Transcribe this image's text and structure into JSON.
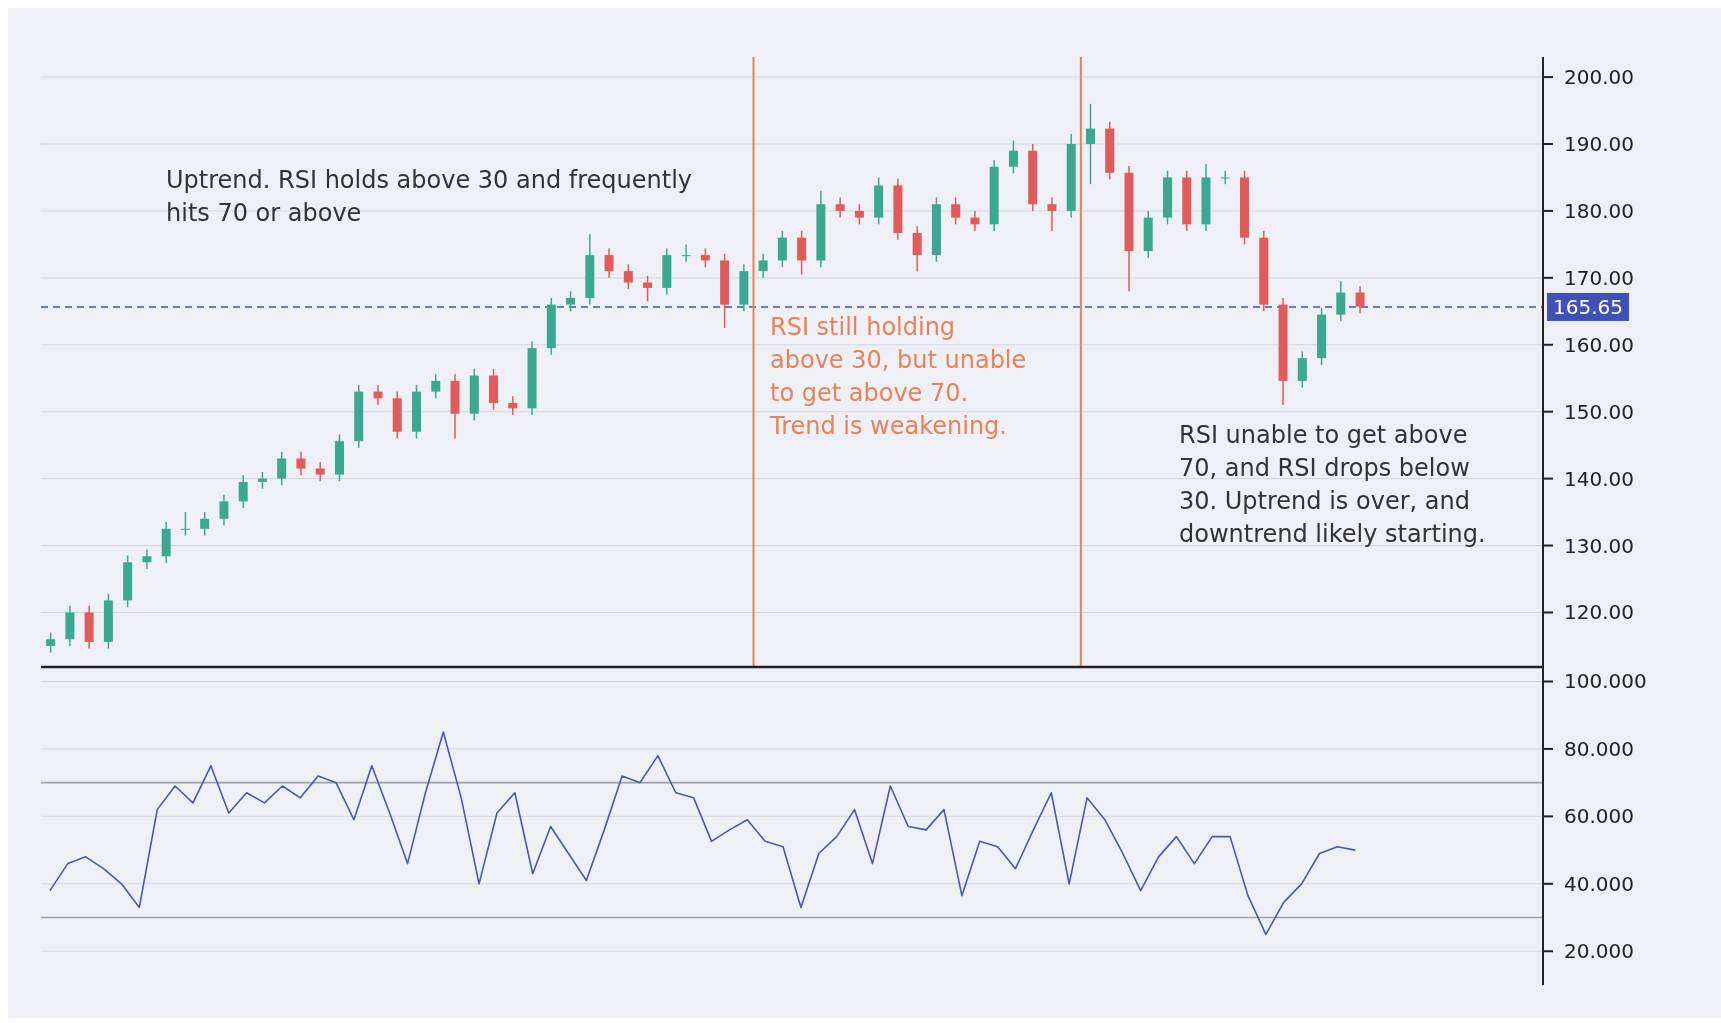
{
  "chart_data": [
    {
      "type": "candlestick",
      "categories": [
        null,
        null,
        null,
        null,
        null,
        null,
        null,
        null,
        null,
        null,
        null,
        null,
        null,
        null,
        null,
        null,
        null,
        null,
        null,
        null,
        null,
        null,
        null,
        null,
        null,
        null,
        null,
        null,
        null,
        null,
        null,
        null,
        null,
        null,
        null,
        null,
        null,
        null,
        null,
        null,
        null,
        null,
        null,
        null,
        null,
        null,
        null,
        null,
        null,
        null,
        null,
        null,
        null,
        null,
        null,
        null,
        null,
        null,
        null,
        null,
        null,
        null,
        null,
        null,
        null,
        null,
        null,
        null,
        null,
        null,
        null,
        null,
        null,
        null,
        null,
        null,
        null,
        null
      ],
      "ohlc": [
        [
          115,
          117,
          114,
          116
        ],
        [
          116,
          121,
          115,
          120
        ],
        [
          120,
          121,
          114.6,
          115.6
        ],
        [
          115.6,
          122.8,
          114.6,
          121.8
        ],
        [
          121.8,
          128.5,
          120.8,
          127.5
        ],
        [
          127.5,
          129.4,
          126.5,
          128.4
        ],
        [
          128.4,
          133.5,
          127.4,
          132.5
        ],
        [
          132.5,
          135,
          131.5,
          132.5
        ],
        [
          132.5,
          135,
          131.5,
          134
        ],
        [
          134,
          137.6,
          133,
          136.6
        ],
        [
          136.6,
          140.5,
          135.6,
          139.5
        ],
        [
          139.5,
          141,
          138.5,
          140
        ],
        [
          140,
          144,
          139,
          143
        ],
        [
          143,
          144,
          140.5,
          141.5
        ],
        [
          141.5,
          142.5,
          139.6,
          140.6
        ],
        [
          140.6,
          146.6,
          139.6,
          145.6
        ],
        [
          145.6,
          154,
          144.6,
          153
        ],
        [
          153,
          154,
          151,
          152
        ],
        [
          152,
          153,
          146,
          147
        ],
        [
          147,
          154,
          146,
          153
        ],
        [
          153,
          155.6,
          152,
          154.6
        ],
        [
          154.6,
          155.6,
          146,
          149.7
        ],
        [
          149.7,
          156.4,
          148.7,
          155.4
        ],
        [
          155.4,
          156.4,
          150.3,
          151.3
        ],
        [
          151.3,
          152.3,
          149.5,
          150.5
        ],
        [
          150.5,
          160.5,
          149.5,
          159.5
        ],
        [
          159.5,
          167,
          158.5,
          166
        ],
        [
          166,
          168,
          165,
          167
        ],
        [
          167,
          176.5,
          166,
          173.4
        ],
        [
          173.4,
          174.4,
          170,
          171
        ],
        [
          171,
          172,
          168.3,
          169.3
        ],
        [
          169.3,
          170.3,
          166.5,
          168.5
        ],
        [
          168.5,
          174.4,
          167.5,
          173.4
        ],
        [
          173.4,
          175,
          172.4,
          173.4
        ],
        [
          173.4,
          174.4,
          171.6,
          172.6
        ],
        [
          172.6,
          173.6,
          162.5,
          166
        ],
        [
          166,
          172,
          165,
          171
        ],
        [
          171,
          173.6,
          170,
          172.6
        ],
        [
          172.6,
          177,
          171.6,
          176
        ],
        [
          176,
          177,
          170.5,
          172.6
        ],
        [
          172.6,
          183,
          171.6,
          181
        ],
        [
          181,
          182,
          179,
          180
        ],
        [
          180,
          181,
          178,
          179
        ],
        [
          179,
          185,
          178,
          183.8
        ],
        [
          183.8,
          184.8,
          175.7,
          176.7
        ],
        [
          176.7,
          177.7,
          171,
          173.4
        ],
        [
          173.4,
          182,
          172.4,
          181
        ],
        [
          181,
          182,
          178,
          179
        ],
        [
          179,
          180,
          177,
          178
        ],
        [
          178,
          187.6,
          177,
          186.6
        ],
        [
          186.6,
          190.5,
          185.6,
          189
        ],
        [
          189,
          190,
          180,
          181
        ],
        [
          181,
          182,
          177,
          180
        ],
        [
          180,
          191.5,
          179,
          190
        ],
        [
          190,
          196,
          184,
          192.3
        ],
        [
          192.3,
          193.3,
          184.7,
          185.7
        ],
        [
          185.7,
          186.7,
          168,
          174
        ],
        [
          174,
          180,
          173,
          179
        ],
        [
          179,
          186,
          178,
          185
        ],
        [
          185,
          186,
          177,
          178
        ],
        [
          178,
          187,
          177,
          185
        ],
        [
          185,
          186,
          184,
          185
        ],
        [
          185,
          186,
          175,
          176
        ],
        [
          176,
          177,
          165,
          166
        ],
        [
          166,
          167,
          151,
          154.6
        ],
        [
          154.6,
          159,
          153.6,
          158
        ],
        [
          158,
          165.5,
          157,
          164.5
        ],
        [
          164.5,
          169.5,
          163.5,
          167.8
        ],
        [
          167.8,
          168.8,
          164.7,
          165.7
        ],
        null,
        null,
        null,
        null,
        null,
        null,
        null,
        null,
        null
      ],
      "ylim": [
        112,
        203
      ],
      "yticks": [
        {
          "value": 120,
          "label": "120.00"
        },
        {
          "value": 130,
          "label": "130.00"
        },
        {
          "value": 140,
          "label": "140.00"
        },
        {
          "value": 150,
          "label": "150.00"
        },
        {
          "value": 160,
          "label": "160.00"
        },
        {
          "value": 170,
          "label": "170.00"
        },
        {
          "value": 180,
          "label": "180.00"
        },
        {
          "value": 190,
          "label": "190.00"
        },
        {
          "value": 200,
          "label": "200.00"
        }
      ],
      "ref_lines": [
        {
          "axis": "y",
          "value": 165.65,
          "label": "165.65",
          "color": "#3f51b5",
          "line_style": "dashed"
        }
      ],
      "annotations": [
        "Uptrend. RSI holds above 30 and frequently\nhits 70 or above",
        "RSI still holding\nabove 30, but unable\nto get above 70.\nTrend is weakening.",
        "RSI unable to get above\n70, and RSI drops below\n30.  Uptrend is over, and\ndowntrend likely starting."
      ],
      "tick_labels": "y",
      "grid": true
    },
    {
      "type": "line",
      "categories": [
        null,
        null,
        null,
        null,
        null,
        null,
        null,
        null,
        null,
        null,
        null,
        null,
        null,
        null,
        null,
        null,
        null,
        null,
        null,
        null,
        null,
        null,
        null,
        null,
        null,
        null,
        null,
        null,
        null,
        null,
        null,
        null,
        null,
        null,
        null,
        null,
        null,
        null,
        null,
        null,
        null,
        null,
        null,
        null,
        null,
        null,
        null,
        null,
        null,
        null,
        null,
        null,
        null,
        null,
        null,
        null,
        null,
        null,
        null,
        null,
        null,
        null,
        null,
        null,
        null,
        null,
        null,
        null,
        null,
        null,
        null,
        null,
        null,
        null,
        null,
        null,
        null,
        null,
        null,
        null,
        null,
        null,
        null,
        null
      ],
      "series": [
        {
          "color": "#4a5aa8",
          "values": [
            38,
            46,
            48,
            44.5,
            40,
            33,
            62,
            69,
            64,
            75,
            61,
            67,
            64,
            69,
            65.5,
            72,
            70,
            59,
            75,
            61,
            46,
            67,
            85,
            65.5,
            40,
            61,
            67,
            43,
            57,
            49,
            41,
            56,
            72,
            70,
            78,
            67,
            65.5,
            52.6,
            56,
            59,
            52.6,
            51,
            33,
            49,
            54,
            62,
            46,
            69,
            57,
            56,
            62,
            36.5,
            52.6,
            51,
            44.5,
            56,
            67,
            40,
            65.5,
            59,
            49,
            38,
            48,
            54,
            46,
            54,
            54,
            36.5,
            25,
            34.5,
            40,
            49,
            51,
            50,
            null,
            null,
            null,
            null,
            null,
            null,
            null,
            null,
            null,
            null
          ]
        }
      ],
      "ylim": [
        10,
        104
      ],
      "yticks": [
        {
          "value": 20,
          "label": "20.000"
        },
        {
          "value": 40,
          "label": "40.000"
        },
        {
          "value": 60,
          "label": "60.000"
        },
        {
          "value": 80,
          "label": "80.000"
        },
        {
          "value": 100,
          "label": "100.000"
        }
      ],
      "ref_lines": [
        {
          "axis": "y",
          "value": 70,
          "color": "#a0a0a8"
        },
        {
          "axis": "y",
          "value": 30,
          "color": "#a0a0a8"
        }
      ],
      "tick_labels": "y",
      "grid": true,
      "marker": "none",
      "line_style": "solid"
    }
  ]
}
